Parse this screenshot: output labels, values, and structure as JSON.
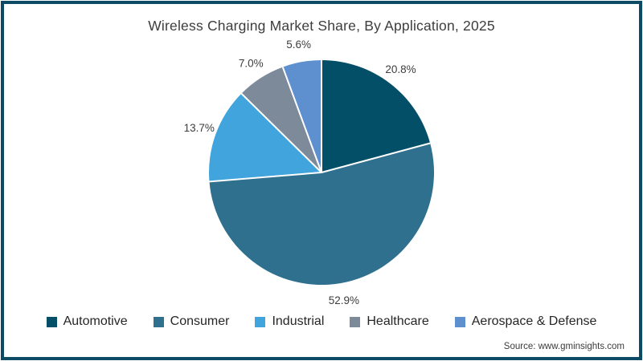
{
  "frame": {
    "border_color": "#0d4a63"
  },
  "chart_data": {
    "type": "pie",
    "title": "Wireless Charging Market Share, By Application, 2025",
    "categories": [
      "Automotive",
      "Consumer",
      "Industrial",
      "Healthcare",
      "Aerospace & Defense"
    ],
    "values": [
      20.8,
      52.9,
      13.7,
      7.0,
      5.6
    ],
    "value_labels": [
      "20.8%",
      "52.9%",
      "13.7%",
      "7.0%",
      "5.6%"
    ],
    "colors": [
      "#034f68",
      "#30708f",
      "#41a4dd",
      "#7d8a99",
      "#5e90d0"
    ],
    "start_angle": "top",
    "direction": "clockwise",
    "legend_position": "bottom",
    "slice_divider_color": "#ffffff"
  },
  "source": "Source: www.gminsights.com"
}
